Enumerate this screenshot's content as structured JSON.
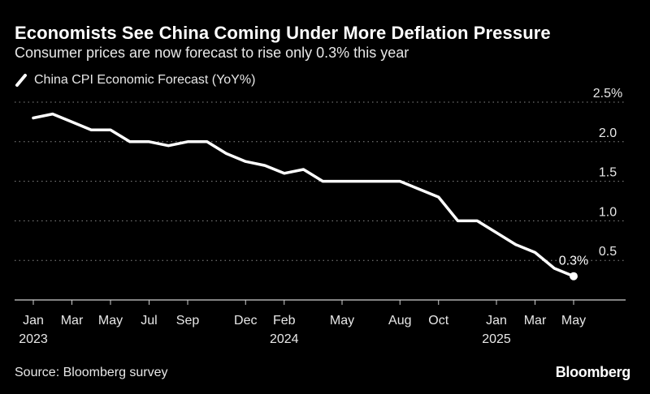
{
  "title": "Economists See China Coming Under More Deflation Pressure",
  "subtitle": "Consumer prices are now forecast to rise only 0.3% this year",
  "source": "Source: Bloomberg survey",
  "brand": "Bloomberg",
  "colors": {
    "background": "#000000",
    "line": "#ffffff",
    "grid": "#8a8a8a",
    "text": "#e8e8e8"
  },
  "chart_data": {
    "type": "line",
    "title": "Economists See China Coming Under More Deflation Pressure",
    "subtitle": "Consumer prices are now forecast to rise only 0.3% this year",
    "xlabel": "",
    "ylabel": "",
    "legend_position": "top-left",
    "grid": true,
    "y_axis_side": "right",
    "ylim": [
      0.0,
      2.5
    ],
    "y_ticks": [
      {
        "value": 0.5,
        "label": "0.5"
      },
      {
        "value": 1.0,
        "label": "1.0"
      },
      {
        "value": 1.5,
        "label": "1.5"
      },
      {
        "value": 2.0,
        "label": "2.0"
      },
      {
        "value": 2.5,
        "label": "2.5%"
      }
    ],
    "x_ticks": [
      {
        "value": "2023-01",
        "label": "Jan",
        "sublabel": "2023"
      },
      {
        "value": "2023-03",
        "label": "Mar",
        "sublabel": ""
      },
      {
        "value": "2023-05",
        "label": "May",
        "sublabel": ""
      },
      {
        "value": "2023-07",
        "label": "Jul",
        "sublabel": ""
      },
      {
        "value": "2023-09",
        "label": "Sep",
        "sublabel": ""
      },
      {
        "value": "2023-12",
        "label": "Dec",
        "sublabel": ""
      },
      {
        "value": "2024-02",
        "label": "Feb",
        "sublabel": "2024"
      },
      {
        "value": "2024-05",
        "label": "May",
        "sublabel": ""
      },
      {
        "value": "2024-08",
        "label": "Aug",
        "sublabel": ""
      },
      {
        "value": "2024-10",
        "label": "Oct",
        "sublabel": ""
      },
      {
        "value": "2025-01",
        "label": "Jan",
        "sublabel": "2025"
      },
      {
        "value": "2025-03",
        "label": "Mar",
        "sublabel": ""
      },
      {
        "value": "2025-05",
        "label": "May",
        "sublabel": ""
      }
    ],
    "series": [
      {
        "name": "China CPI Economic Forecast (YoY%)",
        "color": "#ffffff",
        "points": [
          {
            "x": "2023-01",
            "y": 2.3
          },
          {
            "x": "2023-02",
            "y": 2.35
          },
          {
            "x": "2023-03",
            "y": 2.25
          },
          {
            "x": "2023-04",
            "y": 2.15
          },
          {
            "x": "2023-05",
            "y": 2.15
          },
          {
            "x": "2023-06",
            "y": 2.0
          },
          {
            "x": "2023-07",
            "y": 2.0
          },
          {
            "x": "2023-08",
            "y": 1.95
          },
          {
            "x": "2023-09",
            "y": 2.0
          },
          {
            "x": "2023-10",
            "y": 2.0
          },
          {
            "x": "2023-11",
            "y": 1.85
          },
          {
            "x": "2023-12",
            "y": 1.75
          },
          {
            "x": "2024-01",
            "y": 1.7
          },
          {
            "x": "2024-02",
            "y": 1.6
          },
          {
            "x": "2024-03",
            "y": 1.65
          },
          {
            "x": "2024-04",
            "y": 1.5
          },
          {
            "x": "2024-05",
            "y": 1.5
          },
          {
            "x": "2024-06",
            "y": 1.5
          },
          {
            "x": "2024-07",
            "y": 1.5
          },
          {
            "x": "2024-08",
            "y": 1.5
          },
          {
            "x": "2024-09",
            "y": 1.4
          },
          {
            "x": "2024-10",
            "y": 1.3
          },
          {
            "x": "2024-11",
            "y": 1.0
          },
          {
            "x": "2024-12",
            "y": 1.0
          },
          {
            "x": "2025-01",
            "y": 0.85
          },
          {
            "x": "2025-02",
            "y": 0.7
          },
          {
            "x": "2025-03",
            "y": 0.6
          },
          {
            "x": "2025-04",
            "y": 0.4
          },
          {
            "x": "2025-05",
            "y": 0.3
          }
        ]
      }
    ],
    "annotations": [
      {
        "x": "2025-05",
        "y": 0.3,
        "text": "0.3%"
      }
    ]
  }
}
